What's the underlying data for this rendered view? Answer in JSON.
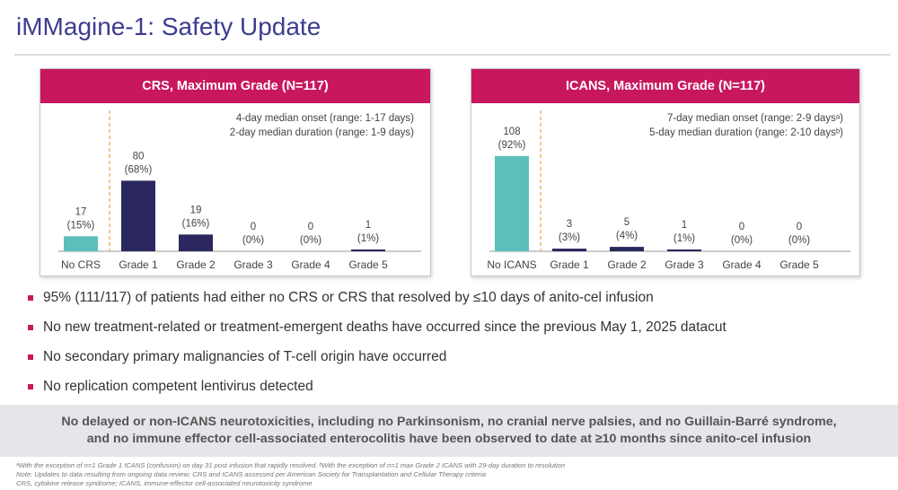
{
  "title": "iMMagine-1: Safety Update",
  "colors": {
    "accent": "#c8175d",
    "title": "#3d3d8f",
    "teal": "#5bbfba",
    "navy": "#2b285f",
    "divider": "#f0a04b"
  },
  "chart_data": [
    {
      "type": "bar",
      "title": "CRS, Maximum Grade (N=117)",
      "categories": [
        "No CRS",
        "Grade 1",
        "Grade 2",
        "Grade 3",
        "Grade 4",
        "Grade 5"
      ],
      "values": [
        17,
        80,
        19,
        0,
        0,
        1
      ],
      "value_labels": [
        "17",
        "80",
        "19",
        "0",
        "0",
        "1"
      ],
      "percent_labels": [
        "(15%)",
        "(68%)",
        "(16%)",
        "(0%)",
        "(0%)",
        "(1%)"
      ],
      "ylim": [
        0,
        117
      ],
      "annotations": [
        "4-day median onset (range: 1-17 days)",
        "2-day median duration (range: 1-9 days)"
      ]
    },
    {
      "type": "bar",
      "title": "ICANS, Maximum Grade (N=117)",
      "categories": [
        "No ICANS",
        "Grade 1",
        "Grade 2",
        "Grade 3",
        "Grade 4",
        "Grade 5"
      ],
      "values": [
        108,
        3,
        5,
        1,
        0,
        0
      ],
      "value_labels": [
        "108",
        "3",
        "5",
        "1",
        "0",
        "0"
      ],
      "percent_labels": [
        "(92%)",
        "(3%)",
        "(4%)",
        "(1%)",
        "(0%)",
        "(0%)"
      ],
      "ylim": [
        0,
        117
      ],
      "annotations": [
        "7-day median onset (range: 2-9 daysᵃ)",
        "5-day median duration (range: 2-10 daysᵇ)"
      ]
    }
  ],
  "bullets": [
    "95% (111/117) of patients had either no CRS or CRS that resolved by ≤10 days of anito-cel infusion",
    "No new treatment-related or treatment-emergent deaths have occurred since the previous May 1, 2025 datacut",
    "No secondary primary malignancies of T-cell origin have occurred",
    "No replication competent lentivirus detected"
  ],
  "banner": {
    "line1": "No delayed or non-ICANS neurotoxicities, including no Parkinsonism, no cranial nerve palsies, and no Guillain-Barré syndrome,",
    "line2": "and no immune effector cell-associated enterocolitis have been observed to date at ≥10 months since anito-cel infusion"
  },
  "footnotes": {
    "line1": "ᵃWith the exception of n=1 Grade 1 ICANS (confusion) on day 31 post infusion that rapidly resolved. ᵇWith the exception of n=1 max Grade 2 ICANS with 29-day duration to resolution",
    "line2": "Note: Updates to data resulting from ongoing data review; CRS and ICANS assessed per American Society for Transplantation and Cellular Therapy criteria",
    "line3": "CRS, cytokine release syndrome; ICANS, immune-effector cell-associated neurotoxicity syndrome"
  }
}
